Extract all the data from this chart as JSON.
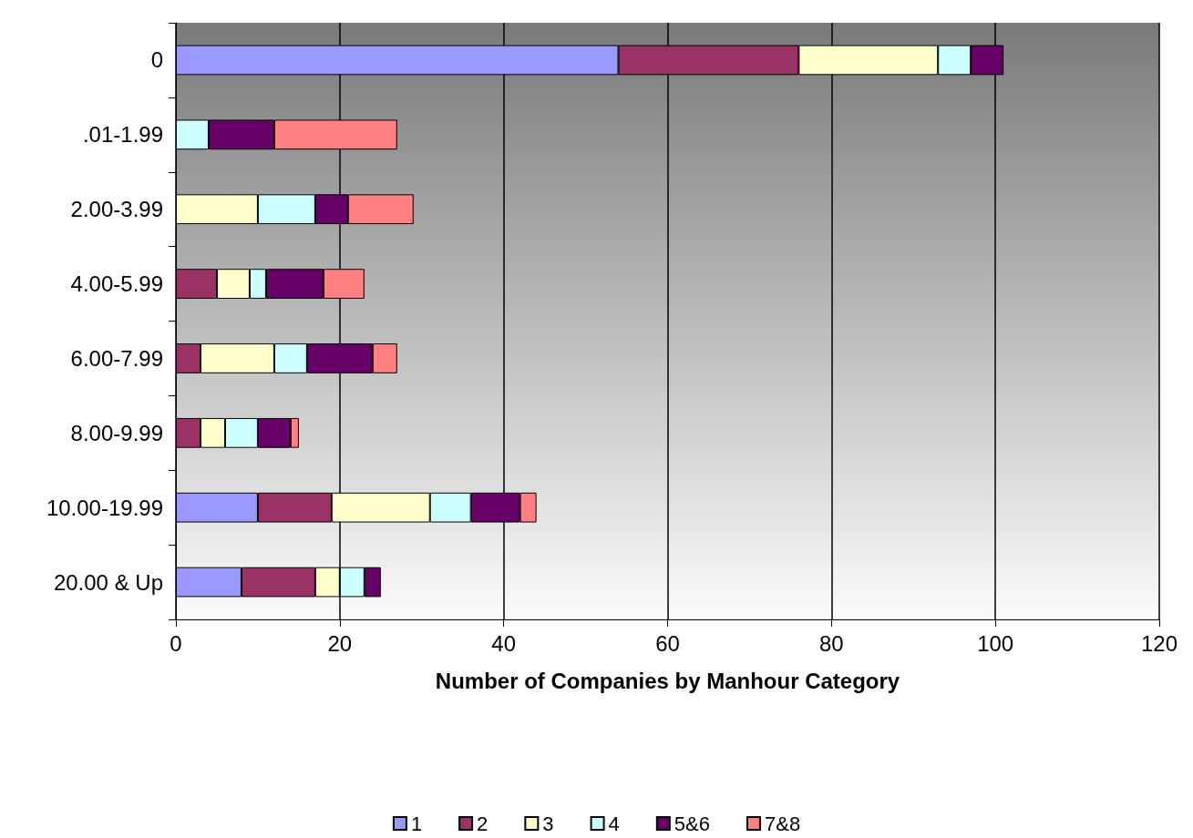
{
  "chart_data": {
    "type": "bar",
    "orientation": "horizontal",
    "stacked": true,
    "xlabel": "Number of Companies by Manhour Category",
    "categories": [
      "0",
      ".01-1.99",
      "2.00-3.99",
      "4.00-5.99",
      "6.00-7.99",
      "8.00-9.99",
      "10.00-19.99",
      "20.00 & Up"
    ],
    "series": [
      {
        "name": "1",
        "color": "#9999ff",
        "values": [
          54,
          null,
          null,
          null,
          null,
          null,
          10,
          8
        ]
      },
      {
        "name": "2",
        "color": "#993366",
        "values": [
          22,
          null,
          null,
          5,
          3,
          3,
          9,
          9
        ]
      },
      {
        "name": "3",
        "color": "#ffffcc",
        "values": [
          17,
          null,
          10,
          4,
          9,
          3,
          12,
          3
        ]
      },
      {
        "name": "4",
        "color": "#ccffff",
        "values": [
          4,
          4,
          7,
          2,
          4,
          4,
          5,
          3
        ]
      },
      {
        "name": "5&6",
        "color": "#660066",
        "values": [
          4,
          8,
          4,
          7,
          8,
          4,
          6,
          2
        ]
      },
      {
        "name": "7&8",
        "color": "#ff8080",
        "values": [
          null,
          15,
          8,
          5,
          3,
          1,
          2,
          null
        ]
      }
    ],
    "xlim": [
      0,
      120
    ],
    "xticks": [
      0,
      20,
      40,
      60,
      80,
      100,
      120
    ],
    "grid": "x",
    "legend": "bottom"
  }
}
